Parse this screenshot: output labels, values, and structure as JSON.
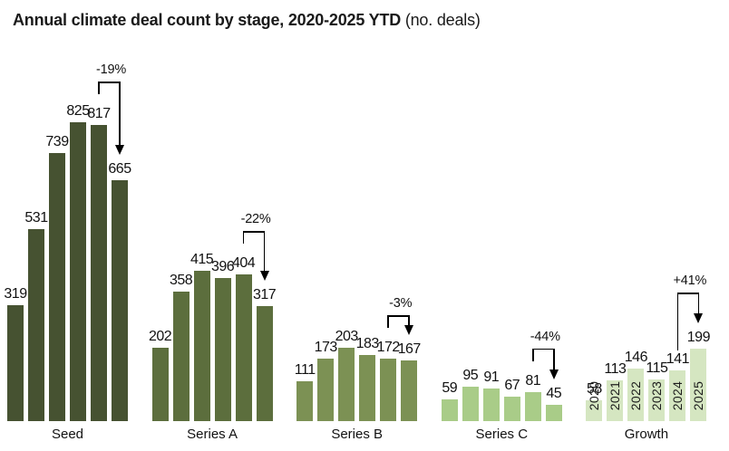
{
  "title": {
    "main": "Annual climate deal count by stage, 2020-2025 YTD",
    "suffix": " (no. deals)"
  },
  "chart_data": {
    "type": "bar",
    "title": "Annual climate deal count by stage, 2020-2025 YTD",
    "unit": "no. deals",
    "value_labels_shown": true,
    "axes_shown": false,
    "years": [
      "2020",
      "2021",
      "2022",
      "2023",
      "2024",
      "2025"
    ],
    "groups": [
      {
        "label": "Seed",
        "color": "#465231",
        "values": [
          319,
          531,
          739,
          825,
          817,
          665
        ],
        "show_year_labels": false,
        "change": {
          "label": "-19%",
          "from_year": "2024",
          "to_year": "2025"
        }
      },
      {
        "label": "Series A",
        "color": "#5c6e3d",
        "values": [
          202,
          358,
          415,
          396,
          404,
          317
        ],
        "show_year_labels": false,
        "change": {
          "label": "-22%",
          "from_year": "2024",
          "to_year": "2025"
        }
      },
      {
        "label": "Series B",
        "color": "#7c9154",
        "values": [
          111,
          173,
          203,
          183,
          172,
          167
        ],
        "show_year_labels": false,
        "change": {
          "label": "-3%",
          "from_year": "2024",
          "to_year": "2025"
        }
      },
      {
        "label": "Series C",
        "color": "#a9cc88",
        "values": [
          59,
          95,
          91,
          67,
          81,
          45
        ],
        "show_year_labels": false,
        "change": {
          "label": "-44%",
          "from_year": "2024",
          "to_year": "2025"
        }
      },
      {
        "label": "Growth",
        "color": "#d5e6c1",
        "values": [
          58,
          113,
          146,
          115,
          141,
          199
        ],
        "show_year_labels": true,
        "change": {
          "label": "+41%",
          "from_year": "2024",
          "to_year": "2025"
        }
      }
    ]
  }
}
